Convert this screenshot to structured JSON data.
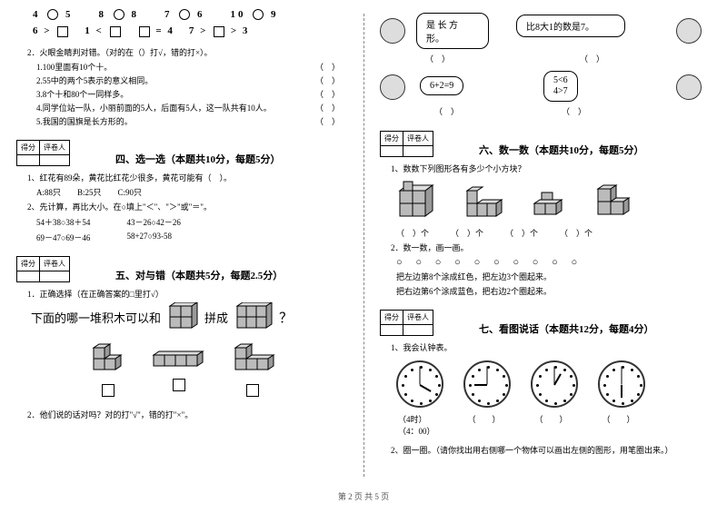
{
  "left": {
    "circles_row": [
      "4 ○ 5",
      "8 ○ 8",
      "7 ○ 6",
      "10 ○ 9"
    ],
    "boxes_row": [
      "6 > □",
      "1 < □",
      "□ = 4",
      "7 > □ > 3"
    ],
    "q2": "2．火眼金睛判对错。（对的在（）打√，错的打×）。",
    "q2_items": [
      "1.100里面有10个十。",
      "2.55中的两个5表示的意义相同。",
      "3.8个十和80个一同样多。",
      "4.同学位站一队，小丽前面的5人，后面有5人，这一队共有10人。",
      "5.我国的国旗是长方形的。"
    ],
    "sec4_title": "四、选一选（本题共10分，每题5分）",
    "s4_q1": "1、红花有89朵，黄花比红花少很多，黄花可能有（　）。",
    "s4_q1_opts": "A:88只　　B:25只　　C:90只",
    "s4_q2": "2、先计算，再比大小。在○填上\"＜\"、\"＞\"或\"＝\"。",
    "s4_pair1a": "54＋38○38＋54",
    "s4_pair1b": "43－26○42－26",
    "s4_pair2a": "69－47○69－46",
    "s4_pair2b": "58+27○93-58",
    "sec5_title": "五、对与错（本题共5分，每题2.5分）",
    "s5_q1": "1．正确选择（在正确答案的□里打√）",
    "s5_blocks_text_a": "下面的哪一堆积木可以和",
    "s5_blocks_text_b": "拼成",
    "s5_q2": "2．他们说的话对吗？对的打\"√\"，错的打\"×\"。",
    "score_labels": {
      "a": "得分",
      "b": "评卷人"
    }
  },
  "right": {
    "bubble1": "是 长 方\n形。",
    "bubble2": "比8大1的数是7。",
    "bubble3": "6+2=9",
    "bubble4a": "5<6",
    "bubble4b": "4>7",
    "paren": "（　）",
    "sec6_title": "六、数一数（本题共10分，每题5分）",
    "s6_q1": "1、数数下列图形各有多少个小方块？",
    "s6_paren_row": [
      "（　）个",
      "（　）个",
      "（　）个",
      "（　）个"
    ],
    "s6_q2": "2．数一数，画一画。",
    "s6_circles": "○ ○ ○ ○ ○ ○ ○ ○ ○ ○",
    "s6_rule1": "把左边第8个涂成红色，把左边3个圈起来。",
    "s6_rule2": "把右边第6个涂成蓝色，把右边2个圈起来。",
    "sec7_title": "七、看图说话（本题共12分，每题4分）",
    "s7_q1": "1、我会认钟表。",
    "times": [
      "（4时）",
      "（4：00）"
    ],
    "empty_time": "（　　）",
    "s7_q2": "2、圈一圈。（请你找出用右侧哪一个物体可以画出左侧的图形，用笔圈出来。）",
    "score_labels": {
      "a": "得分",
      "b": "评卷人"
    }
  },
  "footer": "第 2 页 共 5 页",
  "colors": {
    "bg": "#ffffff",
    "text": "#000000",
    "gray": "#c0c0c0",
    "line": "#888888"
  }
}
